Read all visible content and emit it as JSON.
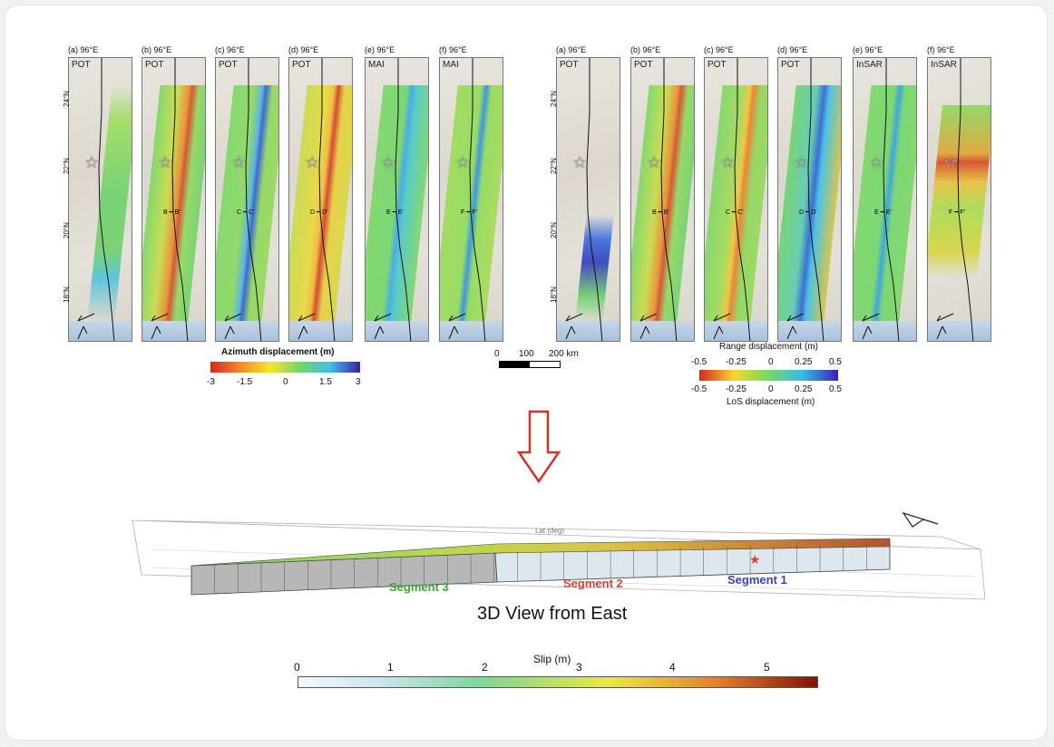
{
  "left_panels": [
    {
      "letter": "(a)",
      "lon": "96°E",
      "type": "POT",
      "profile": ""
    },
    {
      "letter": "(b)",
      "lon": "96°E",
      "type": "POT",
      "profile": "B ━ B'"
    },
    {
      "letter": "(c)",
      "lon": "96°E",
      "type": "POT",
      "profile": "C ━ C'"
    },
    {
      "letter": "(d)",
      "lon": "96°E",
      "type": "POT",
      "profile": "D ━ D'"
    },
    {
      "letter": "(e)",
      "lon": "96°E",
      "type": "MAI",
      "profile": "E ━ E'"
    },
    {
      "letter": "(f)",
      "lon": "96°E",
      "type": "MAI",
      "profile": "F ━ F'"
    }
  ],
  "right_panels": [
    {
      "letter": "(a)",
      "lon": "96°E",
      "type": "POT",
      "profile": ""
    },
    {
      "letter": "(b)",
      "lon": "96°E",
      "type": "POT",
      "profile": "B ━ B'"
    },
    {
      "letter": "(c)",
      "lon": "96°E",
      "type": "POT",
      "profile": "C ━ C'"
    },
    {
      "letter": "(d)",
      "lon": "96°E",
      "type": "POT",
      "profile": "D ━ D'"
    },
    {
      "letter": "(e)",
      "lon": "96°E",
      "type": "InSAR",
      "profile": "E ━ E'"
    },
    {
      "letter": "(f)",
      "lon": "96°E",
      "type": "InSAR",
      "profile": "F ━ F'"
    }
  ],
  "latitudes": [
    "24°N",
    "22°N",
    "20°N",
    "18°N"
  ],
  "azimuth_bar": {
    "title": "Azimuth displacement (m)",
    "ticks": [
      "-3",
      "-1.5",
      "0",
      "1.5",
      "3"
    ]
  },
  "scale_bar": {
    "ticks": [
      "0",
      "100",
      "200 km"
    ]
  },
  "range_bar": {
    "title_top": "Range displacement (m)",
    "ticks": [
      "-0.5",
      "-0.25",
      "0",
      "0.25",
      "0.5"
    ],
    "title_bottom": "LoS displacement (m)"
  },
  "view": {
    "title": "3D View from East",
    "axis_label": "Lat (deg)",
    "segments": [
      {
        "label": "Segment 3",
        "color": "#3aa335"
      },
      {
        "label": "Segment 2",
        "color": "#d8413a"
      },
      {
        "label": "Segment 1",
        "color": "#3a41c8"
      }
    ]
  },
  "slip_bar": {
    "title": "Slip (m)",
    "ticks": [
      "0",
      "1",
      "2",
      "3",
      "4",
      "5"
    ]
  },
  "colors": {
    "arrow": "#d3322c",
    "azimuth": [
      "#d7261f",
      "#f7e52c",
      "#70d66a",
      "#3ec0e6",
      "#3c1fa9"
    ],
    "slip": [
      "#e6f2fa",
      "#7dd69a",
      "#eaea3a",
      "#e2852a",
      "#8c1d0d"
    ]
  }
}
